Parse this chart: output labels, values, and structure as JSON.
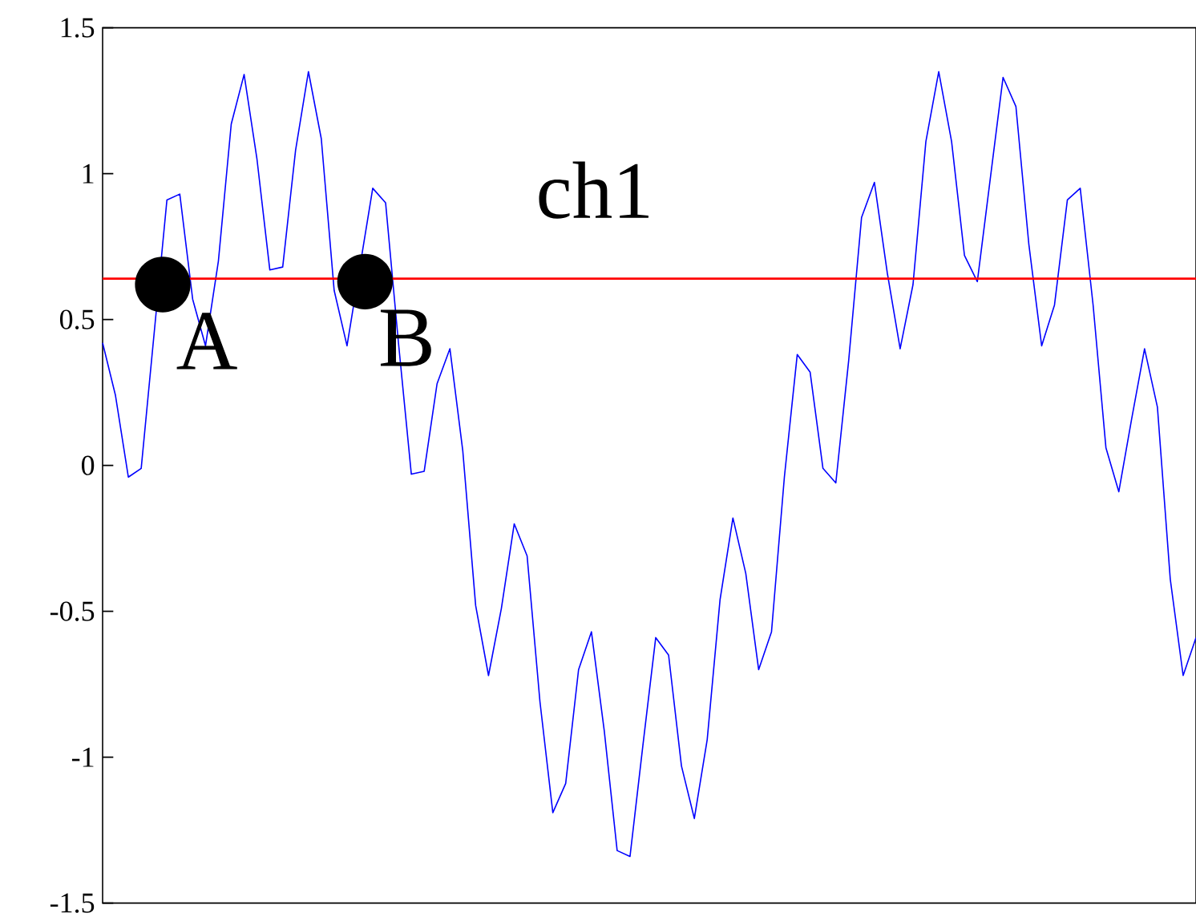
{
  "chart_data": {
    "type": "line",
    "title": "ch1",
    "categories": [
      null,
      null,
      null,
      null,
      null,
      null,
      null,
      null,
      null,
      null,
      null,
      null,
      null,
      null,
      null,
      null,
      null,
      null,
      null,
      null,
      null,
      null,
      null,
      null,
      null,
      null,
      null,
      null,
      null,
      null,
      null,
      null,
      null,
      null,
      null,
      null,
      null,
      null,
      null,
      null,
      null,
      null,
      null,
      null,
      null,
      null,
      null,
      null,
      null,
      null,
      null,
      null,
      null,
      null,
      null,
      null,
      null,
      null,
      null,
      null,
      null,
      null,
      null,
      null,
      null,
      null,
      null,
      null,
      null,
      null,
      null,
      null,
      null,
      null,
      null,
      null,
      null,
      null,
      null,
      null,
      null,
      null,
      null,
      null,
      null,
      null
    ],
    "series": [
      {
        "color": "#0000ff",
        "values": [
          0.42,
          0.24,
          -0.04,
          -0.01,
          0.45,
          0.91,
          0.93,
          0.57,
          0.41,
          0.7,
          1.17,
          1.34,
          1.05,
          0.67,
          0.68,
          1.08,
          1.35,
          1.12,
          0.6,
          0.41,
          null,
          0.95,
          0.9,
          0.42,
          -0.03,
          -0.02,
          0.28,
          0.4,
          0.05,
          -0.48,
          -0.72,
          -0.49,
          -0.2,
          -0.31,
          -0.81,
          -1.19,
          -1.09,
          -0.7,
          -0.57,
          -0.91,
          -1.32,
          -1.34,
          -0.96,
          -0.59,
          -0.65,
          -1.03,
          -1.21,
          -0.94,
          -0.46,
          -0.18,
          -0.37,
          -0.7,
          -0.57,
          -0.04,
          0.38,
          0.32,
          -0.01,
          -0.06,
          0.36,
          0.85,
          0.97,
          0.66,
          0.4,
          0.62,
          1.11,
          1.35,
          1.11,
          0.72,
          0.63,
          0.98,
          1.33,
          1.23,
          0.76,
          0.41,
          0.55,
          0.91,
          0.95,
          0.55,
          0.06,
          -0.09,
          0.16,
          0.4,
          0.2,
          -0.39,
          -0.72,
          -0.59
        ]
      }
    ],
    "ylim": [
      -1.5,
      1.5
    ],
    "yticks": [
      1.5,
      1,
      0.5,
      0,
      -0.5,
      -1,
      -1.5
    ],
    "tick_labels": "y",
    "ref_lines": [
      {
        "axis": "y",
        "value": 0.64,
        "color": "#ff0000"
      }
    ],
    "annotations": [
      {
        "text": "A",
        "y": 0.62
      },
      {
        "text": "B",
        "y": 0.63
      }
    ]
  }
}
